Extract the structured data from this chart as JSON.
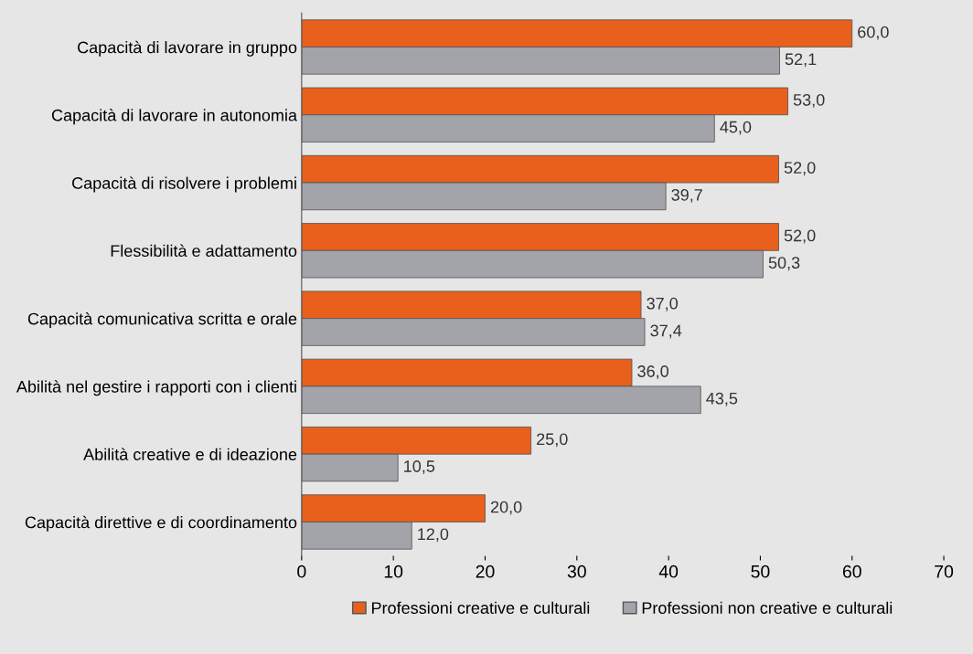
{
  "chart_data": {
    "type": "bar",
    "orientation": "horizontal",
    "categories": [
      "Capacità di lavorare in gruppo",
      "Capacità di lavorare in autonomia",
      "Capacità di risolvere i problemi",
      "Flessibilità e adattamento",
      "Capacità comunicativa scritta e orale",
      "Abilità nel gestire i rapporti con i clienti",
      "Abilità creative e di ideazione",
      "Capacità direttive e di coordinamento"
    ],
    "series": [
      {
        "name": "Professioni creative e culturali",
        "color": "#e8601c",
        "values": [
          60.0,
          53.0,
          52.0,
          52.0,
          37.0,
          36.0,
          25.0,
          20.0
        ],
        "value_labels": [
          "60,0",
          "53,0",
          "52,0",
          "52,0",
          "37,0",
          "36,0",
          "25,0",
          "20,0"
        ]
      },
      {
        "name": "Professioni non creative e culturali",
        "color": "#a3a3aa",
        "values": [
          52.1,
          45.0,
          39.7,
          50.3,
          37.4,
          43.5,
          10.5,
          12.0
        ],
        "value_labels": [
          "52,1",
          "45,0",
          "39,7",
          "50,3",
          "37,4",
          "43,5",
          "10,5",
          "12,0"
        ]
      }
    ],
    "xlim": [
      0,
      70
    ],
    "xticks": [
      0,
      10,
      20,
      30,
      40,
      50,
      60,
      70
    ],
    "grid": false,
    "legend": "bottom"
  }
}
